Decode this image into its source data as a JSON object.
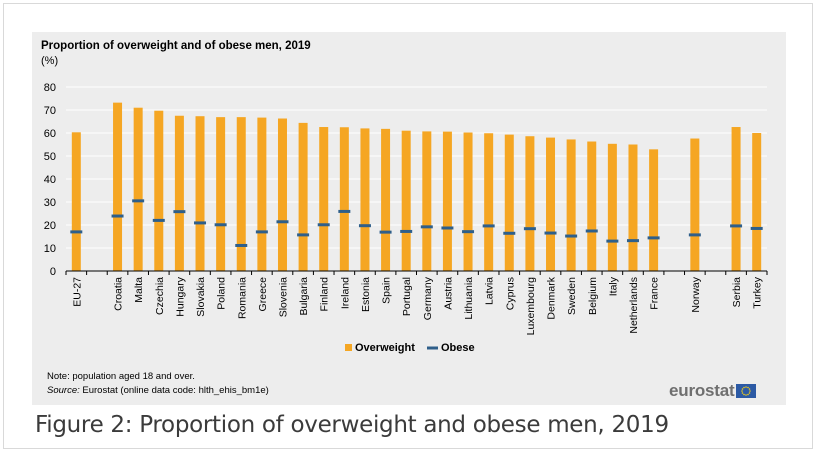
{
  "figure": {
    "caption": "Figure 2: Proportion of overweight and obese men, 2019",
    "note": "Note: population aged 18 and over.",
    "source_label": "Source:",
    "source_text": " Eurostat (online data code: hlth_ehis_bm1e)",
    "logo_text": "eurostat"
  },
  "colors": {
    "overweight": "#f5a623",
    "obese": "#2f5f8a",
    "panel": "#ededed",
    "grid": "#ffffff"
  },
  "chart_data": {
    "type": "bar",
    "title": "Proportion of overweight and of obese men, 2019",
    "unit": "(%)",
    "xlabel": "",
    "ylabel": "(%)",
    "ylim": [
      0,
      80
    ],
    "yticks": [
      0,
      10,
      20,
      30,
      40,
      50,
      60,
      70,
      80
    ],
    "grid": true,
    "legend_position": "bottom-center",
    "categories": [
      "EU-27",
      "",
      "Croatia",
      "Malta",
      "Czechia",
      "Hungary",
      "Slovakia",
      "Poland",
      "Romania",
      "Greece",
      "Slovenia",
      "Bulgaria",
      "Finland",
      "Ireland",
      "Estonia",
      "Spain",
      "Portugal",
      "Germany",
      "Austria",
      "Lithuania",
      "Latvia",
      "Cyprus",
      "Luxembourg",
      "Denmark",
      "Sweden",
      "Belgium",
      "Italy",
      "Netherlands",
      "France",
      "",
      "Norway",
      "",
      "Serbia",
      "Turkey"
    ],
    "series": [
      {
        "name": "Overweight",
        "marker": "bar",
        "values": [
          60.3,
          null,
          73.2,
          71,
          69.7,
          67.5,
          67.3,
          66.9,
          66.9,
          66.7,
          66.3,
          64.4,
          62.6,
          62.5,
          62,
          61.8,
          61,
          60.7,
          60.6,
          60.2,
          59.9,
          59.3,
          58.6,
          58,
          57.2,
          56.3,
          55.3,
          55,
          52.9,
          null,
          57.6,
          null,
          62.6,
          60
        ]
      },
      {
        "name": "Obese",
        "marker": "dash",
        "values": [
          17,
          null,
          23.9,
          30.5,
          22,
          25.8,
          20.9,
          20.1,
          11.1,
          17,
          21.4,
          15.7,
          20.1,
          25.9,
          19.7,
          16.9,
          17.2,
          19.2,
          18.7,
          17.1,
          19.6,
          16.4,
          18.4,
          16.5,
          15.2,
          17.4,
          13,
          13.2,
          14.4,
          null,
          15.7,
          null,
          19.6,
          18.5
        ]
      }
    ]
  }
}
